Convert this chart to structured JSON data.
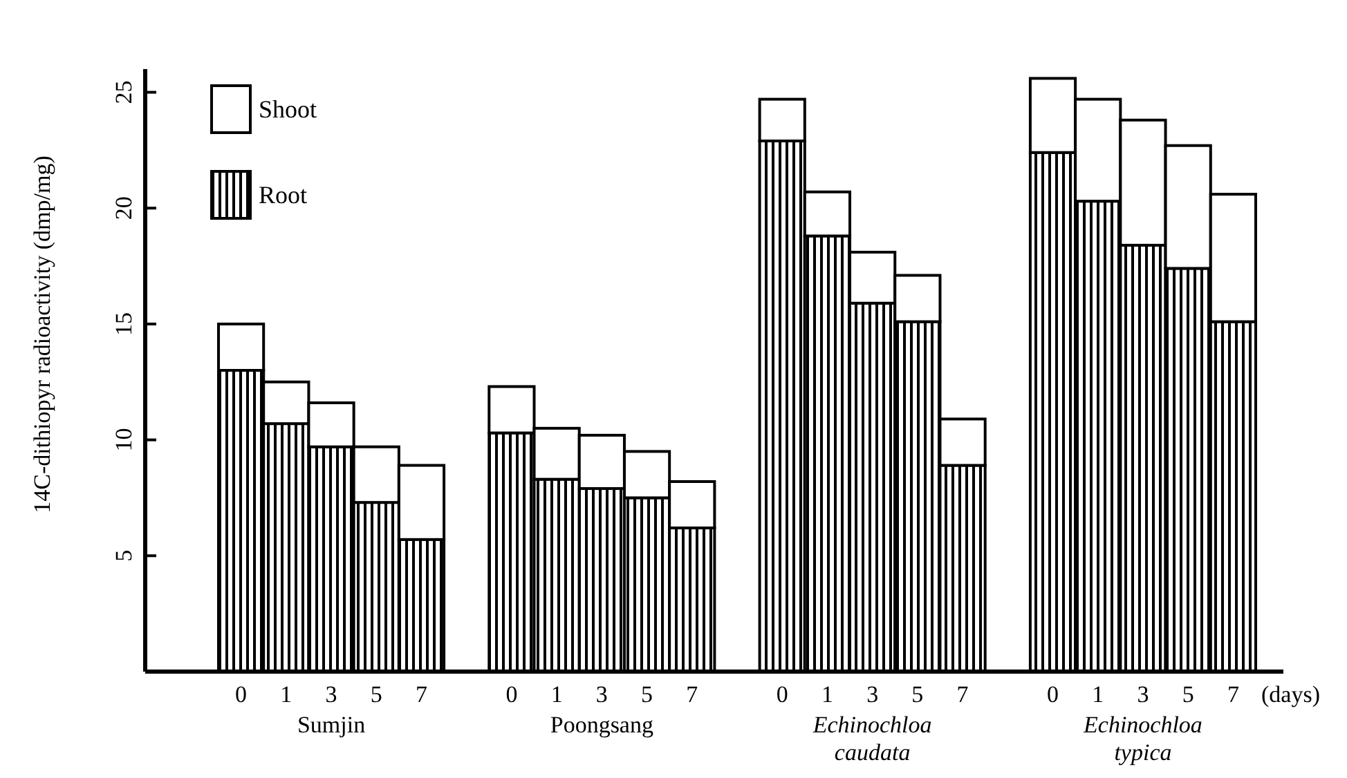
{
  "chart_data": {
    "type": "bar",
    "stacked": true,
    "ylabel": "14C-dithiopyr radioactivity (dmp/mg)",
    "xlabel": "(days)",
    "categories": [
      "0",
      "1",
      "3",
      "5",
      "7",
      null,
      "0",
      "1",
      "3",
      "5",
      "7",
      null,
      "0",
      "1",
      "3",
      "5",
      "7",
      null,
      "0",
      "1",
      "3",
      "5",
      "7"
    ],
    "series": [
      {
        "name": "Root",
        "color": "#000000",
        "values": [
          13.0,
          10.7,
          9.7,
          7.3,
          5.7,
          null,
          10.3,
          8.3,
          7.9,
          7.5,
          6.2,
          null,
          22.9,
          18.8,
          15.9,
          15.1,
          8.9,
          null,
          22.4,
          20.3,
          18.4,
          17.4,
          15.1
        ]
      },
      {
        "name": "Shoot",
        "color": "#ffffff",
        "values": [
          2.0,
          1.8,
          1.9,
          2.4,
          3.2,
          null,
          2.0,
          2.2,
          2.3,
          2.0,
          2.0,
          null,
          1.8,
          1.9,
          2.2,
          2.0,
          2.0,
          null,
          3.2,
          4.4,
          5.4,
          5.3,
          5.5
        ]
      }
    ],
    "ylim": [
      0,
      26
    ],
    "yticks": [
      5,
      10,
      15,
      20,
      25
    ],
    "legend": "top left",
    "grid": false,
    "annotations": [
      "Sumjin",
      "Poongsang",
      "Echinochloa caudata",
      "Echinochloa typica"
    ]
  }
}
